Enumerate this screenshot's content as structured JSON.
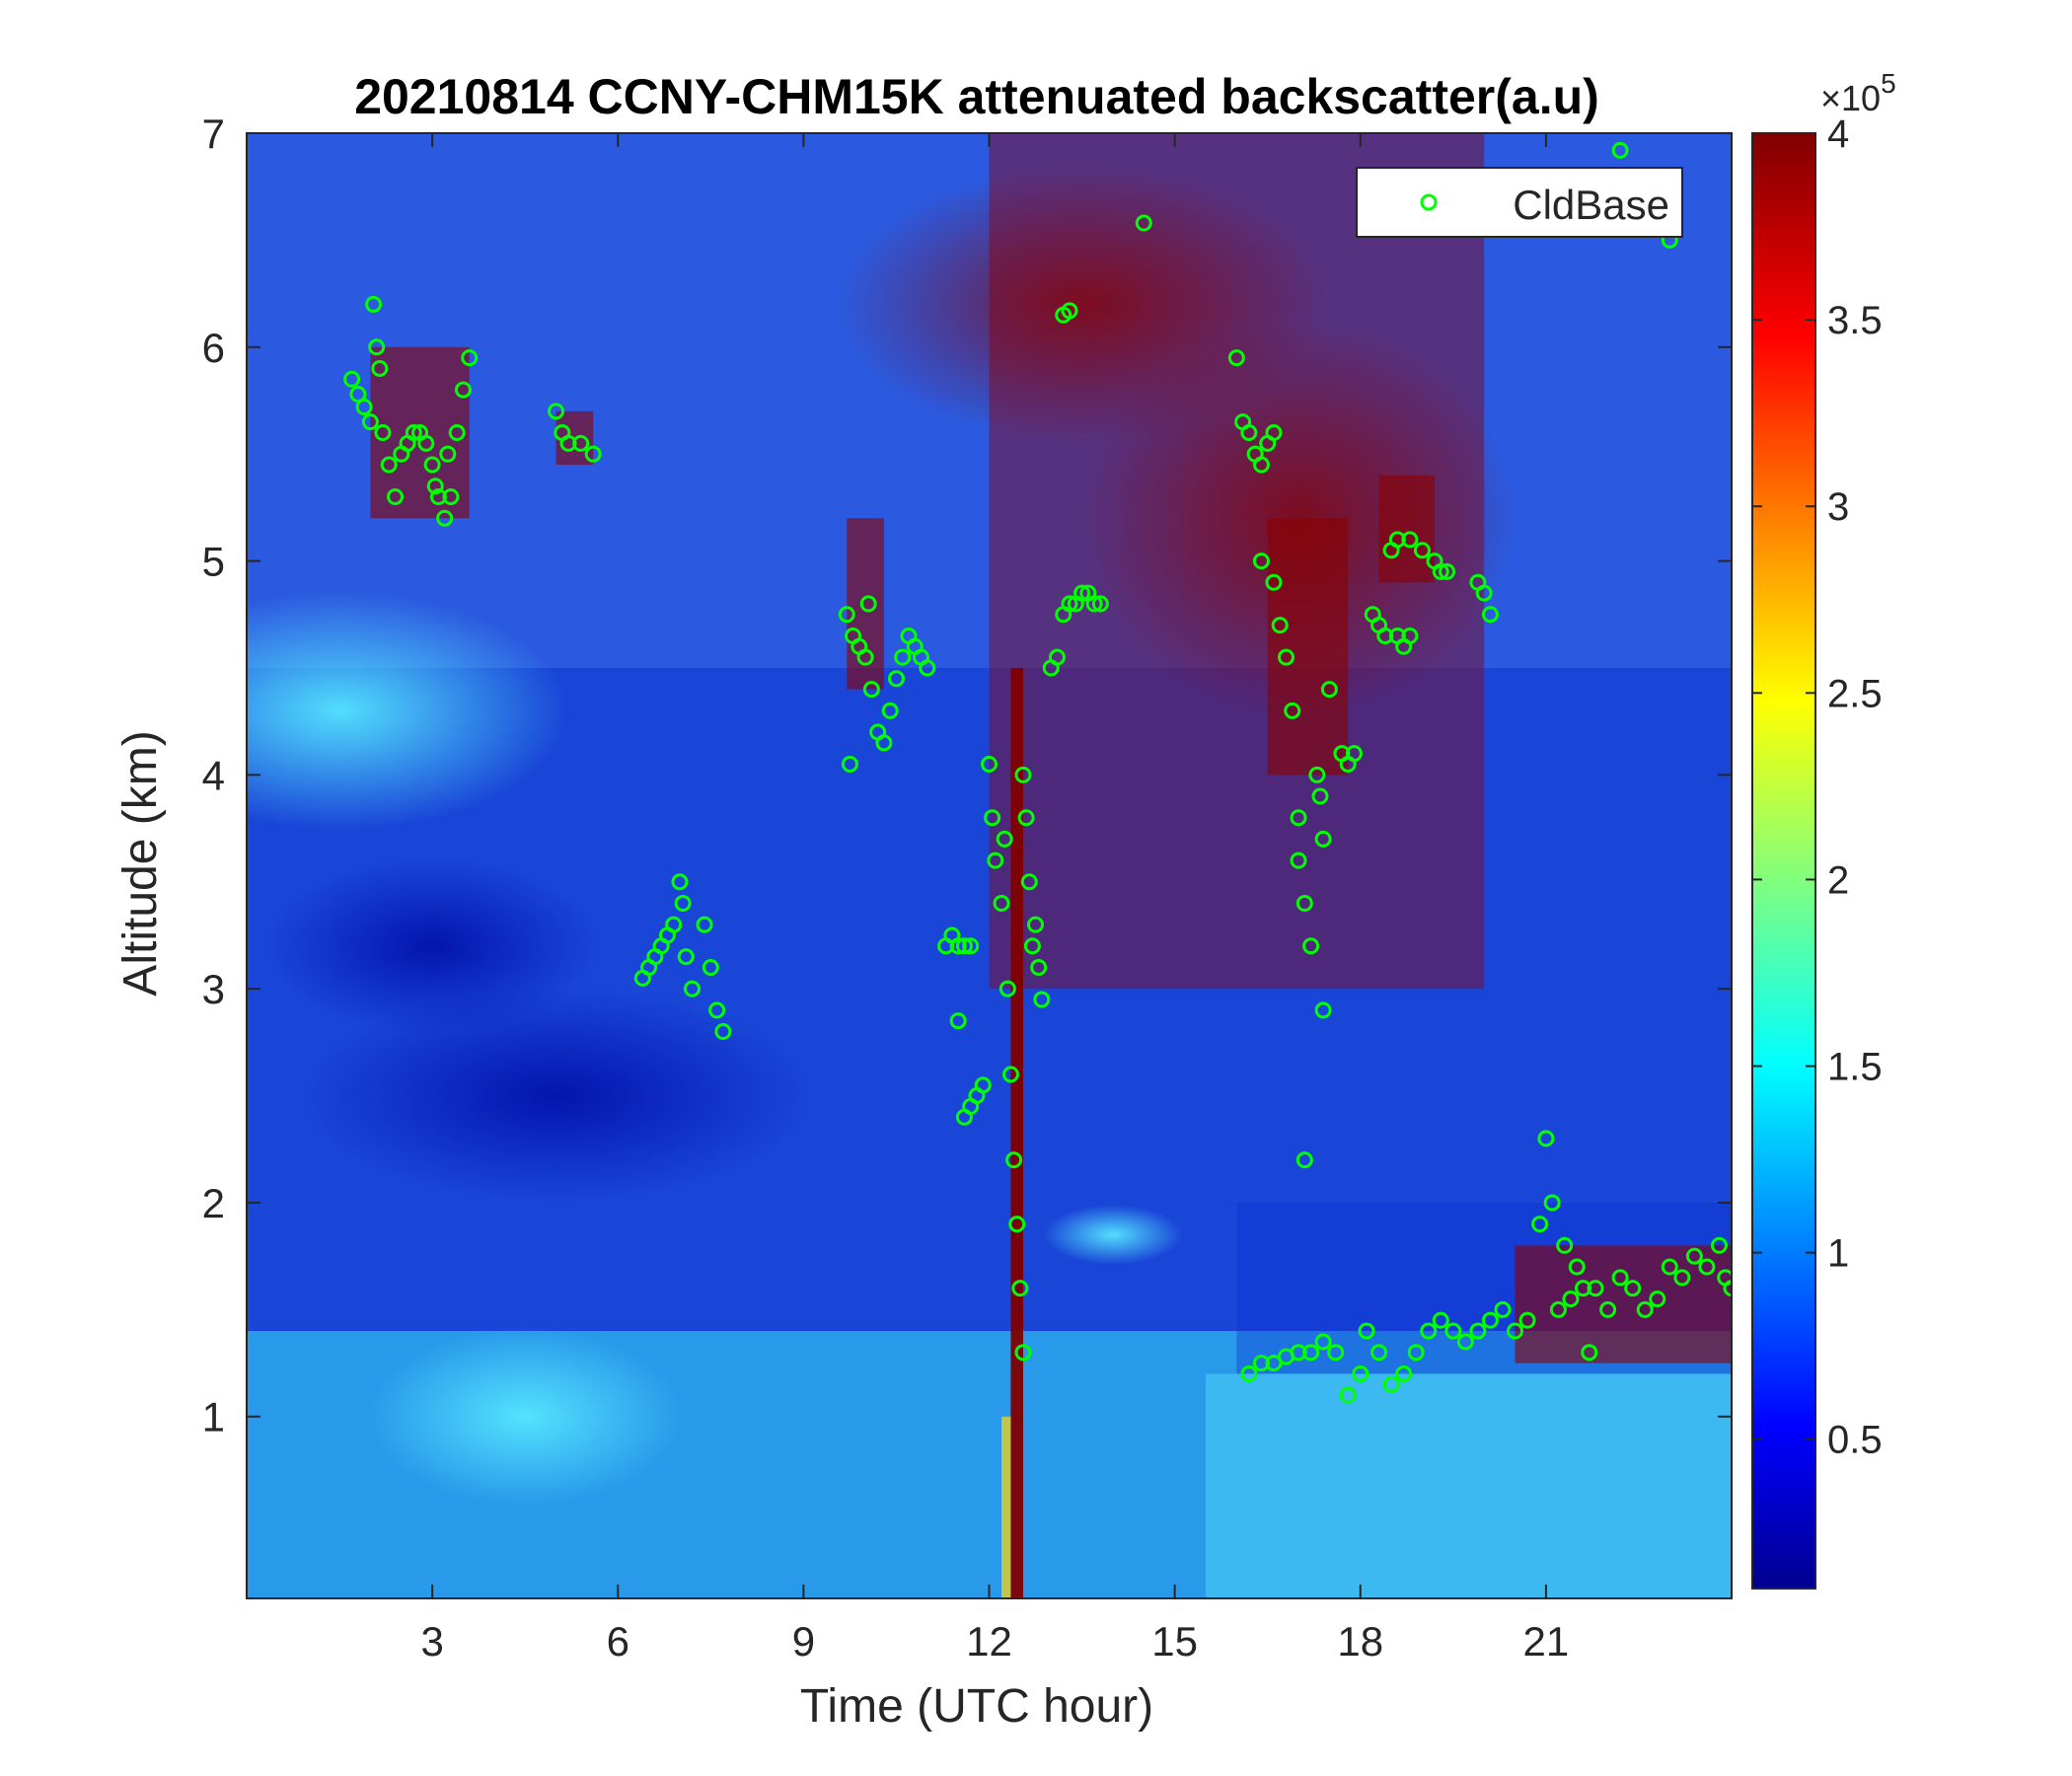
{
  "chart_data": {
    "type": "heatmap",
    "title": "20210814 CCNY-CHM15K attenuated backscatter(a.u)",
    "xlabel": "Time (UTC hour)",
    "ylabel": "Altitude (km)",
    "xlim": [
      0,
      24
    ],
    "ylim": [
      0.15,
      7
    ],
    "x_ticks": [
      3,
      6,
      9,
      12,
      15,
      18,
      21
    ],
    "y_ticks": [
      1,
      2,
      3,
      4,
      5,
      6,
      7
    ],
    "colorbar": {
      "colormap": "jet",
      "range": [
        0.1,
        4
      ],
      "ticks": [
        0.5,
        1,
        1.5,
        2,
        2.5,
        3,
        3.5,
        4
      ],
      "multiplier_base": "×10",
      "multiplier_exp": "5"
    },
    "legend": {
      "position": "top-right",
      "entries": [
        "CldBase"
      ]
    },
    "series": [
      {
        "name": "CldBase",
        "marker": "circle",
        "color": "#00ff00",
        "points": [
          [
            1.7,
            5.85
          ],
          [
            1.8,
            5.78
          ],
          [
            1.9,
            5.72
          ],
          [
            2.0,
            5.65
          ],
          [
            2.05,
            6.2
          ],
          [
            2.1,
            6.0
          ],
          [
            2.15,
            5.9
          ],
          [
            2.2,
            5.6
          ],
          [
            2.3,
            5.45
          ],
          [
            2.4,
            5.3
          ],
          [
            2.5,
            5.5
          ],
          [
            2.6,
            5.55
          ],
          [
            2.7,
            5.6
          ],
          [
            2.8,
            5.6
          ],
          [
            2.9,
            5.55
          ],
          [
            3.0,
            5.45
          ],
          [
            3.05,
            5.35
          ],
          [
            3.1,
            5.3
          ],
          [
            3.2,
            5.2
          ],
          [
            3.25,
            5.5
          ],
          [
            3.3,
            5.3
          ],
          [
            3.4,
            5.6
          ],
          [
            3.5,
            5.8
          ],
          [
            3.6,
            5.95
          ],
          [
            5.0,
            5.7
          ],
          [
            5.1,
            5.6
          ],
          [
            5.2,
            5.55
          ],
          [
            5.4,
            5.55
          ],
          [
            5.6,
            5.5
          ],
          [
            6.4,
            3.05
          ],
          [
            6.5,
            3.1
          ],
          [
            6.6,
            3.15
          ],
          [
            6.7,
            3.2
          ],
          [
            6.8,
            3.25
          ],
          [
            6.9,
            3.3
          ],
          [
            7.0,
            3.5
          ],
          [
            7.05,
            3.4
          ],
          [
            7.1,
            3.15
          ],
          [
            7.2,
            3.0
          ],
          [
            7.4,
            3.3
          ],
          [
            7.5,
            3.1
          ],
          [
            7.6,
            2.9
          ],
          [
            7.7,
            2.8
          ],
          [
            9.7,
            4.75
          ],
          [
            9.8,
            4.65
          ],
          [
            9.9,
            4.6
          ],
          [
            10.0,
            4.55
          ],
          [
            10.05,
            4.8
          ],
          [
            10.1,
            4.4
          ],
          [
            10.2,
            4.2
          ],
          [
            10.3,
            4.15
          ],
          [
            10.4,
            4.3
          ],
          [
            10.5,
            4.45
          ],
          [
            10.6,
            4.55
          ],
          [
            10.7,
            4.65
          ],
          [
            10.8,
            4.6
          ],
          [
            10.9,
            4.55
          ],
          [
            11.0,
            4.5
          ],
          [
            9.75,
            4.05
          ],
          [
            11.3,
            3.2
          ],
          [
            11.4,
            3.25
          ],
          [
            11.5,
            3.2
          ],
          [
            11.6,
            3.2
          ],
          [
            11.7,
            3.2
          ],
          [
            11.5,
            2.85
          ],
          [
            11.6,
            2.4
          ],
          [
            11.7,
            2.45
          ],
          [
            11.8,
            2.5
          ],
          [
            11.9,
            2.55
          ],
          [
            12.0,
            4.05
          ],
          [
            12.05,
            3.8
          ],
          [
            12.1,
            3.6
          ],
          [
            12.2,
            3.4
          ],
          [
            12.3,
            3.0
          ],
          [
            12.35,
            2.6
          ],
          [
            12.4,
            2.2
          ],
          [
            12.45,
            1.9
          ],
          [
            12.5,
            1.6
          ],
          [
            12.55,
            1.3
          ],
          [
            12.6,
            3.8
          ],
          [
            12.65,
            3.5
          ],
          [
            12.7,
            3.2
          ],
          [
            12.75,
            3.3
          ],
          [
            12.8,
            3.1
          ],
          [
            12.85,
            2.95
          ],
          [
            12.55,
            4.0
          ],
          [
            12.25,
            3.7
          ],
          [
            13.0,
            4.5
          ],
          [
            13.1,
            4.55
          ],
          [
            13.2,
            4.75
          ],
          [
            13.3,
            4.8
          ],
          [
            13.4,
            4.8
          ],
          [
            13.5,
            4.85
          ],
          [
            13.6,
            4.85
          ],
          [
            13.7,
            4.8
          ],
          [
            13.8,
            4.8
          ],
          [
            13.2,
            6.15
          ],
          [
            13.3,
            6.17
          ],
          [
            14.5,
            6.58
          ],
          [
            16.0,
            5.95
          ],
          [
            16.1,
            5.65
          ],
          [
            16.2,
            5.6
          ],
          [
            16.3,
            5.5
          ],
          [
            16.4,
            5.45
          ],
          [
            16.5,
            5.55
          ],
          [
            16.6,
            5.6
          ],
          [
            16.4,
            5.0
          ],
          [
            16.6,
            4.9
          ],
          [
            16.7,
            4.7
          ],
          [
            16.8,
            4.55
          ],
          [
            16.9,
            4.3
          ],
          [
            17.0,
            3.8
          ],
          [
            17.0,
            3.6
          ],
          [
            17.1,
            3.4
          ],
          [
            17.2,
            3.2
          ],
          [
            17.3,
            4.0
          ],
          [
            17.35,
            3.9
          ],
          [
            17.4,
            3.7
          ],
          [
            17.4,
            2.9
          ],
          [
            17.5,
            4.4
          ],
          [
            17.7,
            4.1
          ],
          [
            17.8,
            4.05
          ],
          [
            17.9,
            4.1
          ],
          [
            17.1,
            2.2
          ],
          [
            18.2,
            4.75
          ],
          [
            18.3,
            4.7
          ],
          [
            18.4,
            4.65
          ],
          [
            18.6,
            4.65
          ],
          [
            18.7,
            4.6
          ],
          [
            18.8,
            4.65
          ],
          [
            18.5,
            5.05
          ],
          [
            18.6,
            5.1
          ],
          [
            18.8,
            5.1
          ],
          [
            19.0,
            5.05
          ],
          [
            19.2,
            5.0
          ],
          [
            19.3,
            4.95
          ],
          [
            19.4,
            4.95
          ],
          [
            19.9,
            4.9
          ],
          [
            20.0,
            4.85
          ],
          [
            20.1,
            4.75
          ],
          [
            16.2,
            1.2
          ],
          [
            16.4,
            1.25
          ],
          [
            16.6,
            1.25
          ],
          [
            16.8,
            1.28
          ],
          [
            17.0,
            1.3
          ],
          [
            17.2,
            1.3
          ],
          [
            17.4,
            1.35
          ],
          [
            17.6,
            1.3
          ],
          [
            17.8,
            1.1
          ],
          [
            18.0,
            1.2
          ],
          [
            18.1,
            1.4
          ],
          [
            18.3,
            1.3
          ],
          [
            18.5,
            1.15
          ],
          [
            18.7,
            1.2
          ],
          [
            18.9,
            1.3
          ],
          [
            19.1,
            1.4
          ],
          [
            19.3,
            1.45
          ],
          [
            19.5,
            1.4
          ],
          [
            19.7,
            1.35
          ],
          [
            19.9,
            1.4
          ],
          [
            20.1,
            1.45
          ],
          [
            20.3,
            1.5
          ],
          [
            20.5,
            1.4
          ],
          [
            20.7,
            1.45
          ],
          [
            20.9,
            1.9
          ],
          [
            21.0,
            2.3
          ],
          [
            21.1,
            2.0
          ],
          [
            21.2,
            1.5
          ],
          [
            21.3,
            1.8
          ],
          [
            21.4,
            1.55
          ],
          [
            21.5,
            1.7
          ],
          [
            21.6,
            1.6
          ],
          [
            21.7,
            1.3
          ],
          [
            21.8,
            1.6
          ],
          [
            22.0,
            1.5
          ],
          [
            22.2,
            1.65
          ],
          [
            22.4,
            1.6
          ],
          [
            22.6,
            1.5
          ],
          [
            22.8,
            1.55
          ],
          [
            23.0,
            1.7
          ],
          [
            23.2,
            1.65
          ],
          [
            23.4,
            1.75
          ],
          [
            23.6,
            1.7
          ],
          [
            23.8,
            1.8
          ],
          [
            23.9,
            1.65
          ],
          [
            24.0,
            1.6
          ],
          [
            22.2,
            6.92
          ],
          [
            23.0,
            6.5
          ]
        ]
      }
    ]
  }
}
